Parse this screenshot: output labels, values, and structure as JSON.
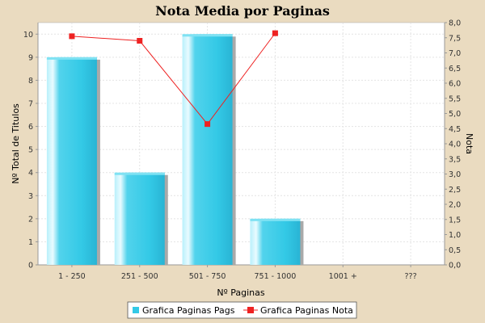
{
  "chart_data": {
    "type": "bar",
    "title": "Nota Media por Paginas",
    "xlabel": "Nº Paginas",
    "ylabel": "Nº Total de Titulos",
    "y2label": "Nota",
    "categories": [
      "1 - 250",
      "251 - 500",
      "501 - 750",
      "751 - 1000",
      "1001 +",
      "???"
    ],
    "ylim": [
      0,
      10.5
    ],
    "y2lim": [
      0,
      8.0
    ],
    "y_ticks": [
      0,
      1,
      2,
      3,
      4,
      5,
      6,
      7,
      8,
      9,
      10
    ],
    "y2_ticks": [
      "0,0",
      "0,5",
      "1,0",
      "1,5",
      "2,0",
      "2,5",
      "3,0",
      "3,5",
      "4,0",
      "4,5",
      "5,0",
      "5,5",
      "6,0",
      "6,5",
      "7,0",
      "7,5",
      "8,0"
    ],
    "grid": true,
    "legend_position": "bottom",
    "series": [
      {
        "name": "Grafica Paginas Pags",
        "type": "bar",
        "axis": "left",
        "color": "#33c9e6",
        "values": [
          9,
          4,
          10,
          2,
          0,
          0
        ]
      },
      {
        "name": "Grafica Paginas Nota",
        "type": "line",
        "axis": "right",
        "color": "#ee2222",
        "values": [
          7.55,
          7.4,
          4.65,
          7.65,
          null,
          null
        ]
      }
    ]
  }
}
